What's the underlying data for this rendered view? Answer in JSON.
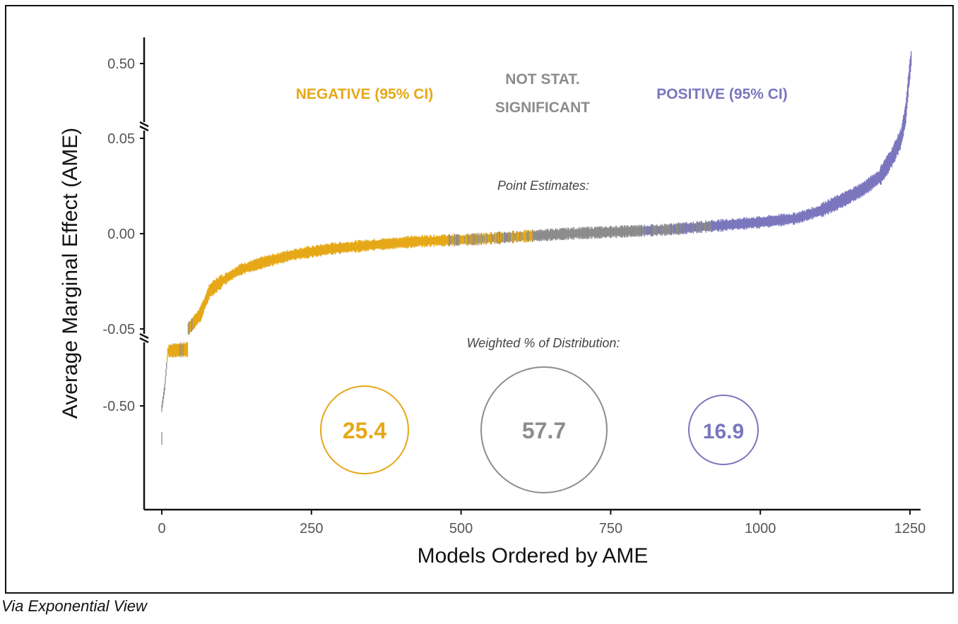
{
  "caption": "Via Exponential View",
  "chart_data": {
    "type": "scatter",
    "xlabel": "Models Ordered by AME",
    "ylabel": "Average Marginal Effect (AME)",
    "xlim": [
      0,
      1250
    ],
    "x_ticks": [
      "0",
      "250",
      "500",
      "750",
      "1000",
      "1250"
    ],
    "y_ticks": [
      "0.50",
      "0.05",
      "0.00",
      "-0.05",
      "-0.50"
    ],
    "y_axis_broken": true,
    "categories": [
      {
        "label": "NEGATIVE (95% CI)",
        "color": "#E6A817",
        "weighted_pct": "25.4"
      },
      {
        "label": "NOT STAT. SIGNIFICANT",
        "color": "#8C8C8C",
        "weighted_pct": "57.7"
      },
      {
        "label": "POSITIVE (95% CI)",
        "color": "#7B76BE",
        "weighted_pct": "16.9"
      }
    ],
    "point_estimates_label": "Point Estimates:",
    "distribution_label": "Weighted % of Distribution:",
    "curve": {
      "x": [
        0,
        5,
        10,
        20,
        35,
        50,
        65,
        80,
        100,
        130,
        170,
        220,
        280,
        350,
        430,
        520,
        600,
        680,
        760,
        840,
        920,
        1000,
        1060,
        1100,
        1140,
        1170,
        1200,
        1220,
        1235,
        1243,
        1248,
        1252
      ],
      "y": [
        -0.52,
        -0.35,
        -0.064,
        -0.058,
        -0.053,
        -0.048,
        -0.042,
        -0.03,
        -0.025,
        -0.019,
        -0.015,
        -0.011,
        -0.008,
        -0.006,
        -0.004,
        -0.003,
        -0.0015,
        0.0,
        0.001,
        0.002,
        0.004,
        0.006,
        0.008,
        0.012,
        0.018,
        0.023,
        0.03,
        0.04,
        0.05,
        0.2,
        0.4,
        0.53
      ]
    },
    "significance_ranges": [
      {
        "from": 0,
        "to": 9,
        "status": "ns"
      },
      {
        "from": 9,
        "to": 30,
        "status": "negative"
      },
      {
        "from": 30,
        "to": 52,
        "status": "mixed_neg"
      },
      {
        "from": 52,
        "to": 480,
        "status": "negative"
      },
      {
        "from": 480,
        "to": 620,
        "status": "mixed_neg"
      },
      {
        "from": 620,
        "to": 800,
        "status": "ns"
      },
      {
        "from": 800,
        "to": 920,
        "status": "mixed_pos"
      },
      {
        "from": 920,
        "to": 1252,
        "status": "positive"
      }
    ]
  }
}
